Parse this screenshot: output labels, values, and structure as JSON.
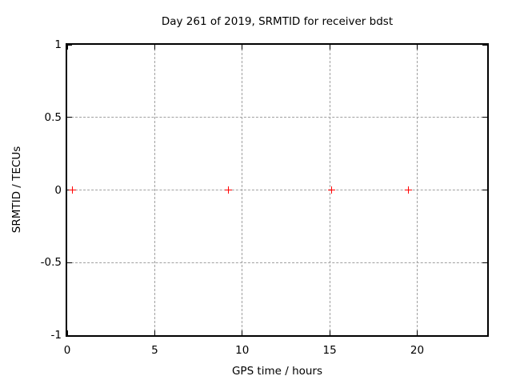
{
  "chart_data": {
    "type": "scatter",
    "title": "Day 261 of 2019, SRMTID for receiver bdst",
    "xlabel": "GPS time / hours",
    "ylabel": "SRMTID / TECUs",
    "xlim": [
      0,
      24
    ],
    "ylim": [
      -1,
      1
    ],
    "xticks": [
      0,
      5,
      10,
      15,
      20
    ],
    "yticks": [
      -1,
      -0.5,
      0,
      0.5,
      1
    ],
    "grid": true,
    "legend_position": "none",
    "series": [
      {
        "name": "SRMTID",
        "marker": "plus",
        "color": "#ff0000",
        "points": [
          {
            "x": 0.3,
            "y": 0
          },
          {
            "x": 9.2,
            "y": 0
          },
          {
            "x": 15.1,
            "y": 0
          },
          {
            "x": 19.5,
            "y": 0
          }
        ]
      }
    ],
    "colors": {
      "background": "#ffffff",
      "border": "#000000",
      "grid": "#a0a0a0",
      "marker": "#ff0000"
    }
  }
}
